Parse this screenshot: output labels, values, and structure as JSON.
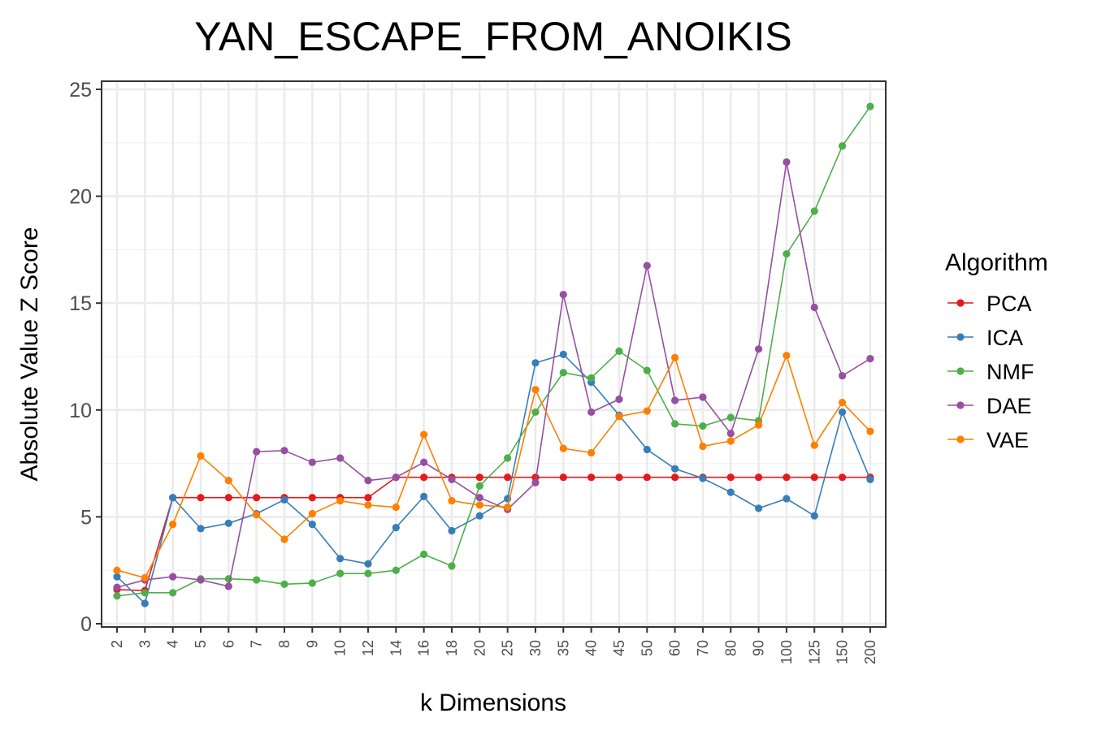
{
  "chart_data": {
    "type": "line",
    "title": "YAN_ESCAPE_FROM_ANOIKIS",
    "xlabel": "k Dimensions",
    "ylabel": "Absolute Value Z Score",
    "categories": [
      "2",
      "3",
      "4",
      "5",
      "6",
      "7",
      "8",
      "9",
      "10",
      "12",
      "14",
      "16",
      "18",
      "20",
      "25",
      "30",
      "35",
      "40",
      "45",
      "50",
      "60",
      "70",
      "80",
      "90",
      "100",
      "125",
      "150",
      "200"
    ],
    "ylim": [
      0,
      25
    ],
    "yticks": [
      0,
      5,
      10,
      15,
      20,
      25
    ],
    "ytick_labels": [
      "0",
      "5",
      "10",
      "15",
      "20",
      "25"
    ],
    "grid": true,
    "legend_title": "Algorithm",
    "legend_position": "right",
    "series": [
      {
        "name": "PCA",
        "color": "#e41a1c",
        "values": [
          1.6,
          1.55,
          5.9,
          5.9,
          5.9,
          5.9,
          5.9,
          5.9,
          5.9,
          5.9,
          6.85,
          6.85,
          6.85,
          6.85,
          6.85,
          6.85,
          6.85,
          6.85,
          6.85,
          6.85,
          6.85,
          6.85,
          6.85,
          6.85,
          6.85,
          6.85,
          6.85,
          6.85
        ]
      },
      {
        "name": "ICA",
        "color": "#377eb8",
        "values": [
          2.2,
          0.95,
          5.9,
          4.45,
          4.7,
          5.15,
          5.8,
          4.65,
          3.05,
          2.8,
          4.5,
          5.95,
          4.35,
          5.05,
          5.85,
          12.2,
          12.6,
          11.3,
          9.75,
          8.15,
          7.25,
          6.8,
          6.15,
          5.4,
          5.85,
          5.05,
          9.9,
          6.75
        ]
      },
      {
        "name": "NMF",
        "color": "#4daf4a",
        "values": [
          1.3,
          1.45,
          1.45,
          2.1,
          2.1,
          2.05,
          1.85,
          1.9,
          2.35,
          2.35,
          2.5,
          3.25,
          2.7,
          6.45,
          7.75,
          9.9,
          11.75,
          11.5,
          12.75,
          11.85,
          9.35,
          9.25,
          9.65,
          9.5,
          17.3,
          19.3,
          22.35,
          24.2
        ]
      },
      {
        "name": "DAE",
        "color": "#984ea3",
        "values": [
          1.7,
          2.05,
          2.2,
          2.05,
          1.75,
          8.05,
          8.1,
          7.55,
          7.75,
          6.7,
          6.85,
          7.55,
          6.75,
          5.9,
          5.35,
          6.6,
          15.4,
          9.9,
          10.5,
          16.75,
          10.45,
          10.6,
          8.9,
          12.85,
          21.6,
          14.8,
          11.6,
          12.4
        ]
      },
      {
        "name": "VAE",
        "color": "#ff7f00",
        "values": [
          2.5,
          2.15,
          4.65,
          7.85,
          6.7,
          5.1,
          3.95,
          5.15,
          5.75,
          5.55,
          5.45,
          8.85,
          5.75,
          5.55,
          5.45,
          10.95,
          8.2,
          8.0,
          9.7,
          9.95,
          12.45,
          8.3,
          8.55,
          9.3,
          12.55,
          8.35,
          10.35,
          9.0
        ]
      }
    ]
  }
}
